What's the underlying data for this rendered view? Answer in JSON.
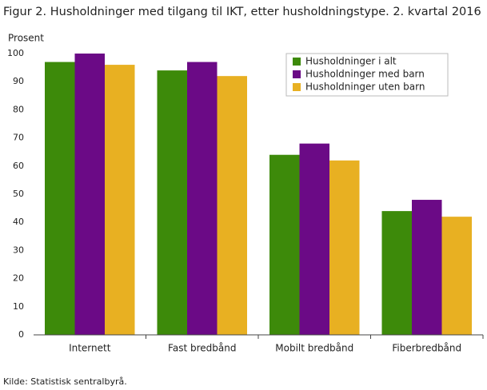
{
  "chart_data": {
    "type": "bar",
    "title": "Figur 2. Husholdninger med tilgang til IKT, etter husholdningstype.  2. kvartal 2016",
    "y_label": "Prosent",
    "source": "Kilde: Statistisk sentralbyrå.",
    "categories": [
      "Internett",
      "Fast bredbånd",
      "Mobilt bredbånd",
      "Fiberbredbånd"
    ],
    "series": [
      {
        "name": "Husholdninger i alt",
        "color": "#3d8a0a",
        "values": [
          97,
          94,
          64,
          44
        ]
      },
      {
        "name": "Husholdninger med barn",
        "color": "#6b0a86",
        "values": [
          100,
          97,
          68,
          48
        ]
      },
      {
        "name": "Husholdninger uten barn",
        "color": "#e8b022",
        "values": [
          96,
          92,
          62,
          42
        ]
      }
    ],
    "ylim": [
      0,
      100
    ],
    "yticks": [
      0,
      10,
      20,
      30,
      40,
      50,
      60,
      70,
      80,
      90,
      100
    ],
    "grid": false,
    "legend": "top-right"
  }
}
